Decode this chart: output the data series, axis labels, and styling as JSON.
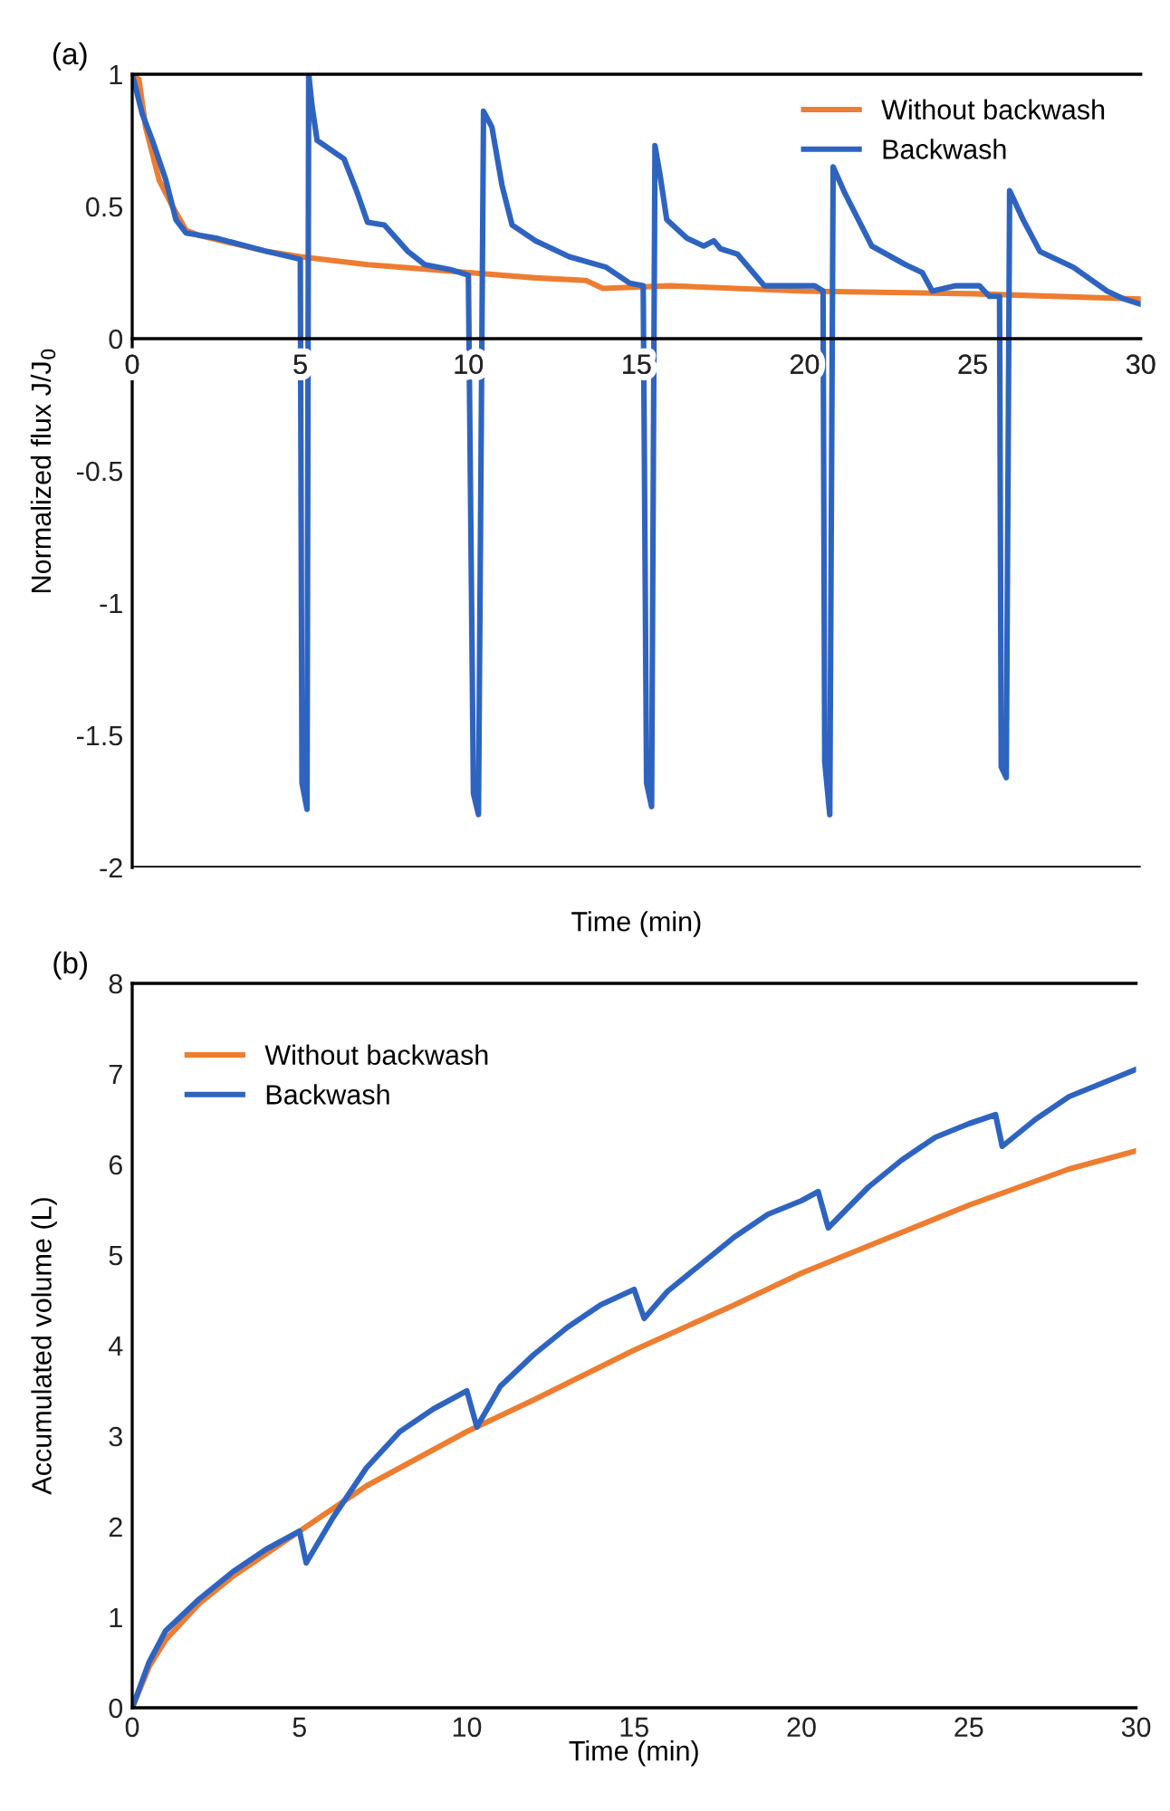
{
  "chart_data": [
    {
      "type": "line",
      "title": "(a)",
      "xlabel": "Time (min)",
      "ylabel": "Normalized flux J/J$_{0}$",
      "xlim": [
        0,
        30
      ],
      "xticks": [
        0,
        5,
        10,
        15,
        20,
        25,
        30
      ],
      "ylim": [
        -2,
        1
      ],
      "yticks": [
        -2,
        -1.5,
        -1,
        -0.5,
        0,
        0.5,
        1
      ],
      "legend": "top right",
      "grid": false,
      "series": [
        {
          "name": "Without backwash",
          "color": "#ed7d31",
          "x": [
            0,
            0.2,
            0.4,
            0.8,
            1.2,
            1.6,
            2,
            3,
            4,
            5,
            7,
            10,
            12,
            13.5,
            14,
            16,
            20,
            25,
            30
          ],
          "values": [
            1.0,
            0.98,
            0.8,
            0.6,
            0.5,
            0.41,
            0.39,
            0.36,
            0.33,
            0.31,
            0.28,
            0.25,
            0.23,
            0.22,
            0.19,
            0.2,
            0.18,
            0.17,
            0.15
          ]
        },
        {
          "name": "Backwash",
          "color": "#2e64c0",
          "x": [
            0,
            0.3,
            0.6,
            1.0,
            1.3,
            1.6,
            2.5,
            4,
            5.0,
            5.05,
            5.2,
            5.25,
            5.35,
            5.5,
            6.3,
            6.7,
            7.0,
            7.5,
            8.2,
            8.7,
            9.5,
            10.0,
            10.15,
            10.3,
            10.45,
            10.7,
            11.0,
            11.3,
            12,
            13,
            14.1,
            14.8,
            15.2,
            15.3,
            15.45,
            15.55,
            15.7,
            15.9,
            16.5,
            17,
            17.3,
            17.5,
            18,
            18.8,
            19.5,
            20.3,
            20.55,
            20.6,
            20.75,
            20.85,
            21.2,
            21.6,
            22,
            23,
            23.5,
            23.8,
            24.5,
            25.2,
            25.5,
            25.8,
            25.85,
            26.0,
            26.1,
            26.5,
            27,
            28,
            29,
            29.5,
            30
          ],
          "values": [
            1.0,
            0.85,
            0.75,
            0.6,
            0.45,
            0.4,
            0.38,
            0.33,
            0.3,
            -1.68,
            -1.78,
            1.0,
            0.88,
            0.75,
            0.68,
            0.55,
            0.44,
            0.43,
            0.33,
            0.28,
            0.26,
            0.24,
            -1.72,
            -1.8,
            0.86,
            0.8,
            0.58,
            0.43,
            0.37,
            0.31,
            0.27,
            0.21,
            0.2,
            -1.68,
            -1.77,
            0.73,
            0.62,
            0.45,
            0.38,
            0.35,
            0.37,
            0.34,
            0.32,
            0.2,
            0.2,
            0.2,
            0.18,
            -1.6,
            -1.8,
            0.65,
            0.55,
            0.45,
            0.35,
            0.28,
            0.25,
            0.18,
            0.2,
            0.2,
            0.16,
            0.16,
            -1.62,
            -1.66,
            0.56,
            0.45,
            0.33,
            0.27,
            0.18,
            0.15,
            0.13
          ]
        }
      ]
    },
    {
      "type": "line",
      "title": "(b)",
      "xlabel": "Time (min)",
      "ylabel": "Accumulated volume (L)",
      "xlim": [
        0,
        30
      ],
      "xticks": [
        0,
        5,
        10,
        15,
        20,
        25,
        30
      ],
      "ylim": [
        0,
        8
      ],
      "yticks": [
        0,
        1,
        2,
        3,
        4,
        5,
        6,
        7,
        8
      ],
      "legend": "top left",
      "grid": false,
      "series": [
        {
          "name": "Without backwash",
          "color": "#ed7d31",
          "x": [
            0,
            0.5,
            1,
            2,
            3,
            5,
            7,
            10,
            12,
            15,
            18,
            20,
            22,
            25,
            28,
            30
          ],
          "values": [
            0,
            0.45,
            0.75,
            1.15,
            1.45,
            1.95,
            2.45,
            3.05,
            3.4,
            3.95,
            4.45,
            4.8,
            5.1,
            5.55,
            5.95,
            6.15
          ]
        },
        {
          "name": "Backwash",
          "color": "#2e64c0",
          "x": [
            0,
            0.5,
            1,
            2,
            3,
            4,
            5,
            5.2,
            6,
            7,
            8,
            9,
            10,
            10.3,
            11,
            12,
            13,
            14,
            15,
            15.3,
            16,
            17,
            18,
            19,
            20,
            20.5,
            20.8,
            22,
            23,
            24,
            25,
            25.8,
            26,
            27,
            28,
            29,
            30
          ],
          "values": [
            0,
            0.5,
            0.85,
            1.2,
            1.5,
            1.75,
            1.95,
            1.6,
            2.1,
            2.65,
            3.05,
            3.3,
            3.5,
            3.1,
            3.55,
            3.9,
            4.2,
            4.45,
            4.62,
            4.3,
            4.6,
            4.9,
            5.2,
            5.45,
            5.6,
            5.7,
            5.3,
            5.75,
            6.05,
            6.3,
            6.45,
            6.55,
            6.2,
            6.5,
            6.75,
            6.9,
            7.05
          ]
        }
      ]
    }
  ]
}
